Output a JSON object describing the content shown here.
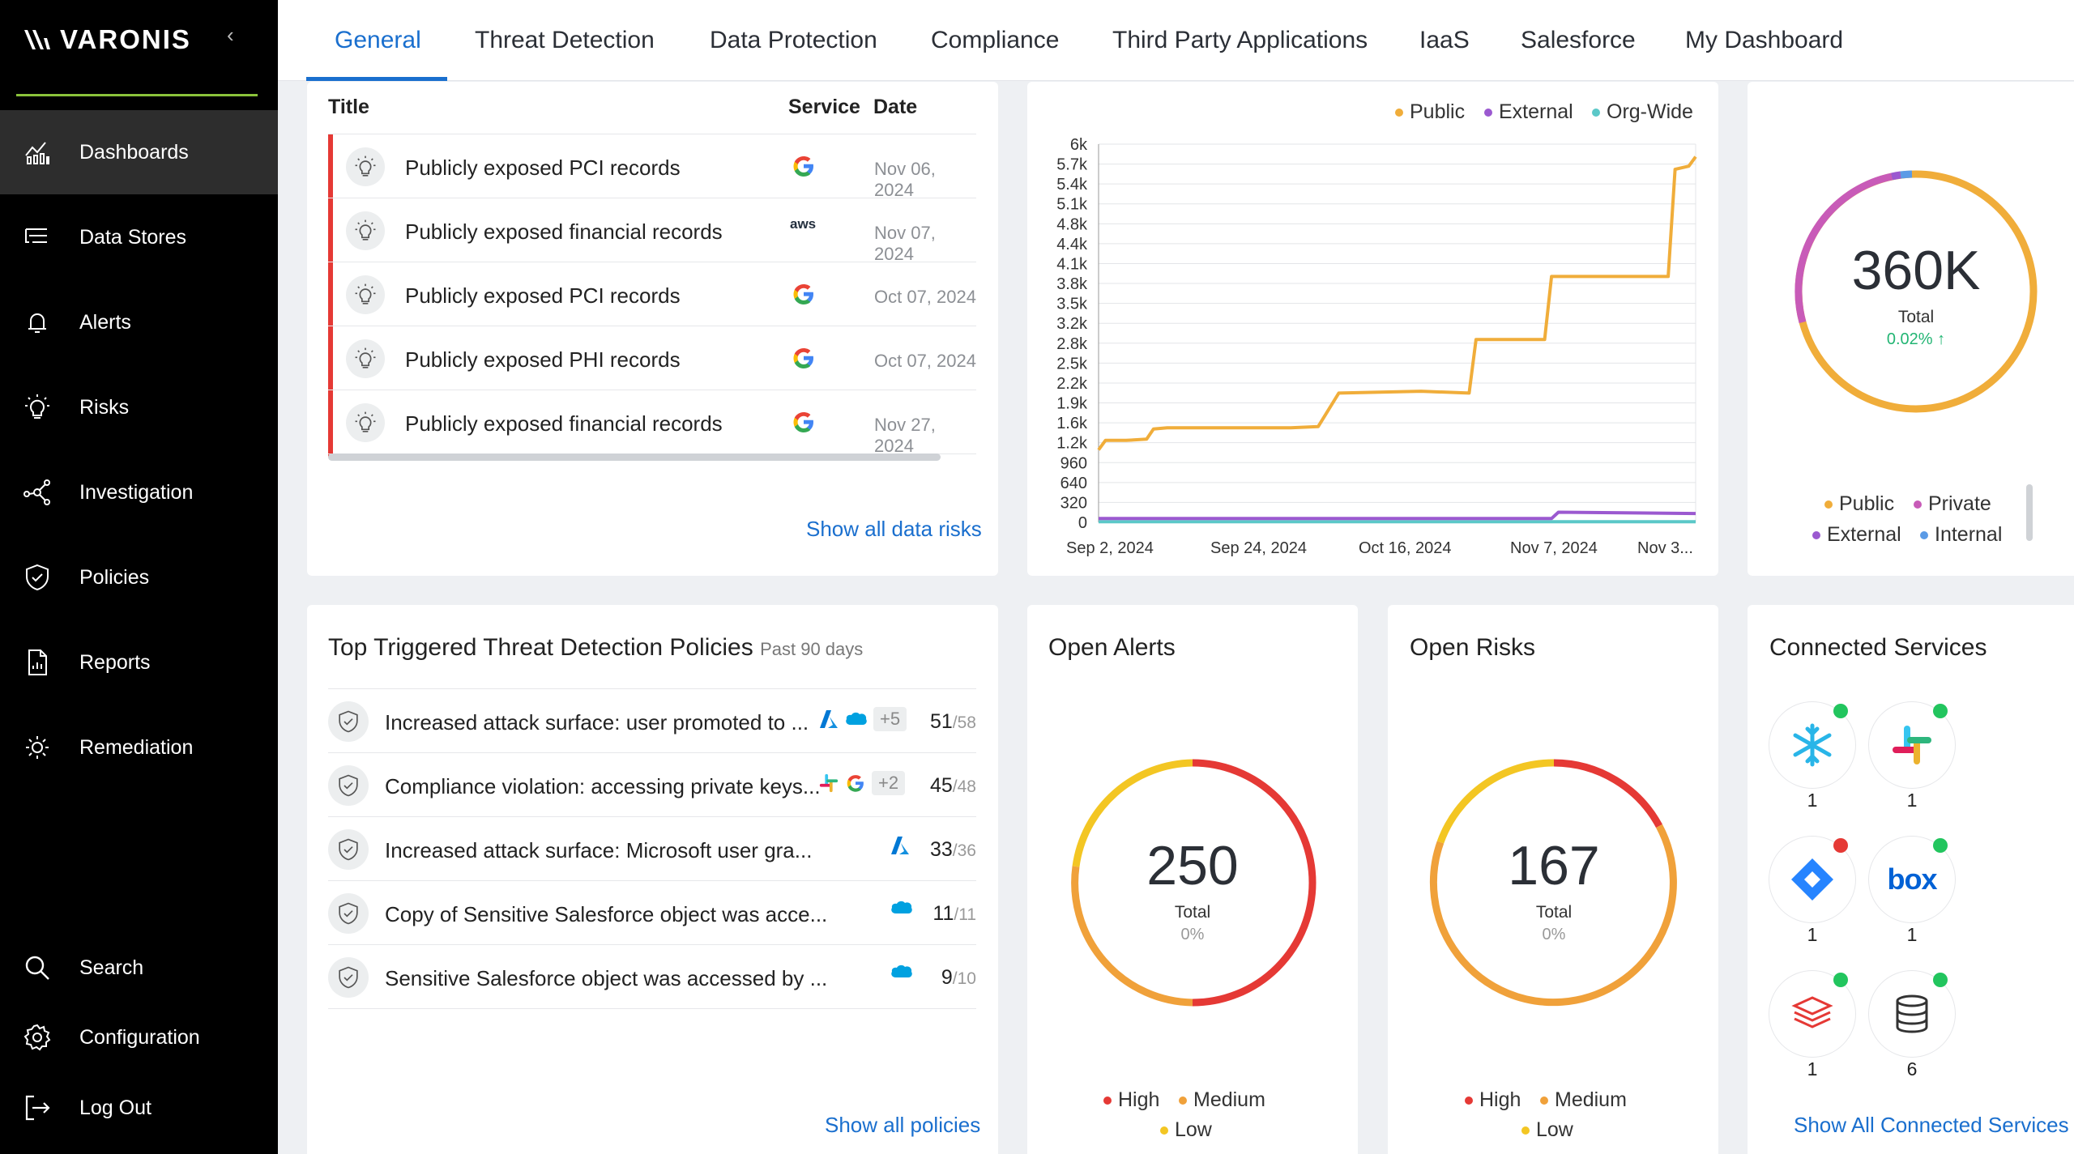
{
  "sidebar": {
    "logo_text": "VARONIS",
    "collapse_icon": "chevron-left-icon",
    "items": [
      {
        "label": "Dashboards",
        "icon": "dashboard-chart-icon",
        "active": true
      },
      {
        "label": "Data Stores",
        "icon": "data-stores-icon"
      },
      {
        "label": "Alerts",
        "icon": "bell-icon"
      },
      {
        "label": "Risks",
        "icon": "lightbulb-icon"
      },
      {
        "label": "Investigation",
        "icon": "investigation-graph-icon"
      },
      {
        "label": "Policies",
        "icon": "shield-icon"
      },
      {
        "label": "Reports",
        "icon": "report-icon"
      },
      {
        "label": "Remediation",
        "icon": "remediation-sun-icon"
      }
    ],
    "bottom_items": [
      {
        "label": "Search",
        "icon": "search-icon"
      },
      {
        "label": "Configuration",
        "icon": "gear-icon"
      },
      {
        "label": "Log Out",
        "icon": "logout-icon"
      }
    ]
  },
  "tabs": [
    "General",
    "Threat Detection",
    "Data Protection",
    "Compliance",
    "Third Party Applications",
    "IaaS",
    "Salesforce",
    "My Dashboard"
  ],
  "risks": {
    "headers": {
      "title": "Title",
      "service": "Service",
      "date": "Date"
    },
    "rows": [
      {
        "title": "Publicly exposed PCI records",
        "service": "google",
        "date": "Nov 06, 2024"
      },
      {
        "title": "Publicly exposed financial records",
        "service": "aws",
        "date": "Nov 07, 2024"
      },
      {
        "title": "Publicly exposed PCI records",
        "service": "google",
        "date": "Oct 07, 2024"
      },
      {
        "title": "Publicly exposed PHI records",
        "service": "google",
        "date": "Oct 07, 2024"
      },
      {
        "title": "Publicly exposed financial records",
        "service": "google",
        "date": "Nov 27, 2024"
      }
    ],
    "show_all": "Show all data risks",
    "aws_text": "aws"
  },
  "exposure_chart": {
    "legend": [
      "Public",
      "External",
      "Org-Wide"
    ],
    "colors": {
      "Public": "#f0ad3a",
      "External": "#9b59d0",
      "Org-Wide": "#5bc8c8"
    }
  },
  "chart_data": {
    "type": "line",
    "title": "",
    "xlabel": "",
    "ylabel": "",
    "x_ticks": [
      "Sep 2, 2024",
      "Sep 24, 2024",
      "Oct 16, 2024",
      "Nov 7, 2024",
      "Nov 3..."
    ],
    "y_ticks": [
      "0",
      "320",
      "640",
      "960",
      "1.2k",
      "1.6k",
      "1.9k",
      "2.2k",
      "2.5k",
      "2.8k",
      "3.2k",
      "3.5k",
      "3.8k",
      "4.1k",
      "4.4k",
      "4.8k",
      "5.1k",
      "5.4k",
      "5.7k",
      "6k"
    ],
    "ylim": [
      0,
      6000
    ],
    "grid": true,
    "legend_position": "top-right",
    "series": [
      {
        "name": "Public",
        "color": "#f0ad3a",
        "x": [
          "Sep 2, 2024",
          "Sep 3, 2024",
          "Sep 6, 2024",
          "Sep 9, 2024",
          "Sep 10, 2024",
          "Sep 12, 2024",
          "Sep 20, 2024",
          "Sep 30, 2024",
          "Oct 4, 2024",
          "Oct 7, 2024",
          "Oct 19, 2024",
          "Oct 26, 2024",
          "Oct 27, 2024",
          "Nov 6, 2024",
          "Nov 7, 2024",
          "Nov 8, 2024",
          "Nov 10, 2024",
          "Nov 24, 2024",
          "Nov 25, 2024",
          "Nov 27, 2024",
          "Nov 28, 2024"
        ],
        "y": [
          1150,
          1300,
          1300,
          1320,
          1480,
          1500,
          1500,
          1500,
          1520,
          2050,
          2080,
          2050,
          2900,
          2900,
          3900,
          3900,
          3900,
          3900,
          5600,
          5650,
          5800
        ]
      },
      {
        "name": "External",
        "color": "#9b59d0",
        "x": [
          "Sep 2, 2024",
          "Oct 16, 2024",
          "Nov 7, 2024",
          "Nov 8, 2024",
          "Nov 28, 2024"
        ],
        "y": [
          60,
          60,
          60,
          160,
          140
        ]
      },
      {
        "name": "Org-Wide",
        "color": "#5bc8c8",
        "x": [
          "Sep 2, 2024",
          "Nov 28, 2024"
        ],
        "y": [
          10,
          10
        ]
      }
    ]
  },
  "classification": {
    "total": "360K",
    "total_label": "Total",
    "change": "0.02% ↑",
    "legend": [
      "Public",
      "Private",
      "External",
      "Internal"
    ],
    "colors": {
      "Public": "#f0ad3a",
      "Private": "#c85bb8",
      "External": "#9b59d0",
      "Internal": "#5b9be6"
    }
  },
  "policies": {
    "title": "Top Triggered Threat Detection Policies",
    "subtitle": "Past 90 days",
    "rows": [
      {
        "title": "Increased attack surface: user promoted to ...",
        "icons": [
          "azure-icon",
          "salesforce-icon"
        ],
        "extra": "+5",
        "count": "51",
        "of": "/58"
      },
      {
        "title": "Compliance violation: accessing private keys...",
        "icons": [
          "slack-icon",
          "google-icon"
        ],
        "extra": "+2",
        "count": "45",
        "of": "/48"
      },
      {
        "title": "Increased attack surface: Microsoft user gra...",
        "icons": [
          "azure-icon"
        ],
        "extra": "",
        "count": "33",
        "of": "/36"
      },
      {
        "title": "Copy of Sensitive Salesforce object was acce...",
        "icons": [
          "salesforce-icon"
        ],
        "extra": "",
        "count": "11",
        "of": "/11"
      },
      {
        "title": "Sensitive Salesforce object was accessed by ...",
        "icons": [
          "salesforce-icon"
        ],
        "extra": "",
        "count": "9",
        "of": "/10"
      }
    ],
    "show_all": "Show all policies"
  },
  "open_alerts": {
    "title": "Open Alerts",
    "total": "250",
    "total_label": "Total",
    "change": "0%",
    "legend": [
      "High",
      "Medium",
      "Low"
    ],
    "colors": {
      "High": "#e53935",
      "Medium": "#f0a13a",
      "Low": "#f3c623"
    }
  },
  "open_risks": {
    "title": "Open Risks",
    "total": "167",
    "total_label": "Total",
    "change": "0%",
    "legend": [
      "High",
      "Medium",
      "Low"
    ]
  },
  "connected": {
    "title": "Connected Services",
    "services": [
      {
        "name": "snowflake-icon",
        "count": "1",
        "status": "#22c55e"
      },
      {
        "name": "slack-icon",
        "count": "1",
        "status": "#22c55e"
      },
      {
        "name": "jira-diamond-icon",
        "count": "1",
        "status": "#e53935"
      },
      {
        "name": "box-icon",
        "count": "1",
        "status": "#22c55e"
      },
      {
        "name": "aws-stack-icon",
        "count": "1",
        "status": "#22c55e"
      },
      {
        "name": "database-icon",
        "count": "6",
        "status": "#22c55e"
      }
    ],
    "box_text": "box",
    "show_all": "Show All Connected Services"
  }
}
